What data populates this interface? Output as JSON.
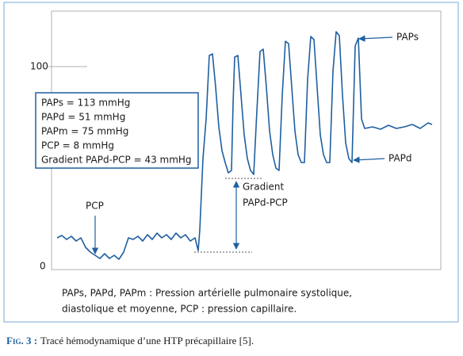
{
  "axis": {
    "ticks": [
      "100",
      "0"
    ]
  },
  "info_box": {
    "lines": [
      "PAPs = 113 mmHg",
      "PAPd = 51 mmHg",
      "PAPm = 75 mmHg",
      "PCP = 8 mmHg",
      "Gradient PAPd-PCP = 43 mmHg"
    ]
  },
  "annotations": {
    "paps": "PAPs",
    "papd": "PAPd",
    "pcp": "PCP",
    "gradient": [
      "Gradient",
      "PAPd-PCP"
    ]
  },
  "legend": {
    "lines": [
      "PAPs, PAPd, PAPm : Pression artérielle pulmonaire systolique,",
      "diastolique et moyenne, PCP : pression capillaire."
    ]
  },
  "caption": {
    "label": "Fig. 3 :",
    "text": "Tracé hémodynamique d’une HTP précapillaire [5]."
  }
}
